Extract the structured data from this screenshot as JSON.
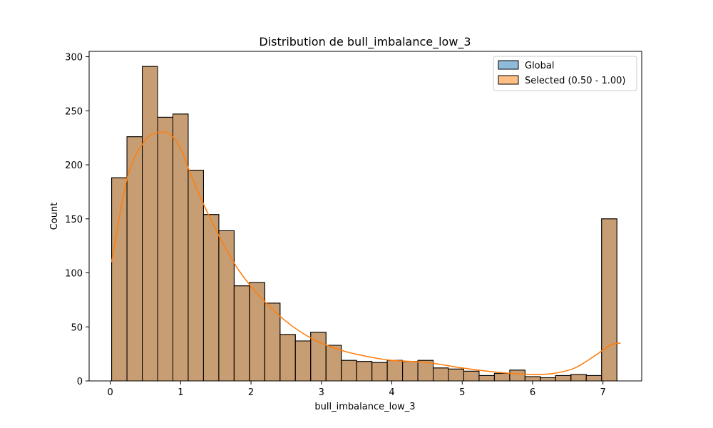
{
  "chart_data": {
    "type": "bar",
    "title": "Distribution de bull_imbalance_low_3",
    "xlabel": "bull_imbalance_low_3",
    "ylabel": "Count",
    "xlim": [
      -0.3,
      7.55
    ],
    "ylim": [
      0,
      305
    ],
    "xticks": [
      0,
      1,
      2,
      3,
      4,
      5,
      6,
      7
    ],
    "yticks": [
      0,
      50,
      100,
      150,
      200,
      250,
      300
    ],
    "bin_start": 0.02,
    "bin_width": 0.2175,
    "series": [
      {
        "name": "Global",
        "color": "#1f77b4",
        "values": [
          188,
          226,
          291,
          244,
          247,
          195,
          154,
          139,
          88,
          91,
          72,
          43,
          37,
          45,
          33,
          19,
          18,
          17,
          19,
          18,
          19,
          12,
          11,
          9,
          5,
          7,
          10,
          4,
          3,
          5,
          6,
          5,
          150
        ]
      },
      {
        "name": "Selected (0.50 - 1.00)",
        "color": "#ff7f0e",
        "values": [
          188,
          226,
          291,
          244,
          247,
          195,
          154,
          139,
          88,
          91,
          72,
          43,
          37,
          45,
          33,
          19,
          18,
          17,
          19,
          18,
          19,
          12,
          11,
          9,
          5,
          7,
          10,
          4,
          3,
          5,
          6,
          5,
          150
        ]
      }
    ],
    "kde": {
      "x": [
        0.02,
        0.25,
        0.5,
        0.7,
        0.85,
        1.0,
        1.2,
        1.5,
        1.8,
        2.1,
        2.5,
        2.9,
        3.3,
        3.7,
        4.0,
        4.5,
        5.0,
        5.5,
        6.0,
        6.3,
        6.6,
        6.9,
        7.1,
        7.25
      ],
      "y": [
        110,
        190,
        223,
        230,
        228,
        215,
        182,
        140,
        105,
        80,
        55,
        38,
        28,
        22,
        19,
        17,
        12,
        8,
        6,
        7,
        12,
        24,
        33,
        35
      ]
    },
    "grid": false,
    "legend_position": "top-right"
  }
}
